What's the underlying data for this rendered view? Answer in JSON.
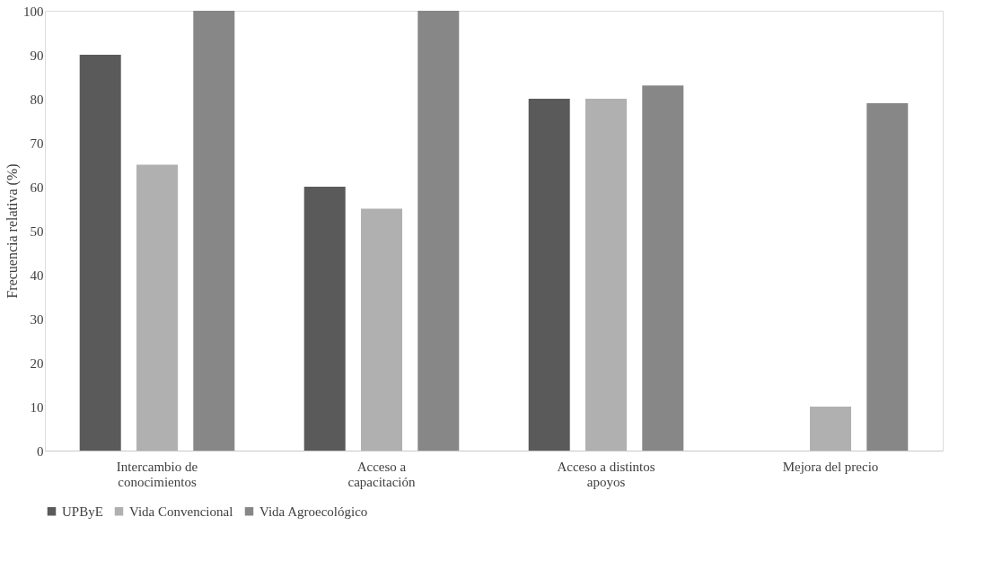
{
  "chart_data": {
    "type": "bar",
    "ylabel": "Frecuencia relativa (%)",
    "categories": [
      "Intercambio de conocimientos",
      "Acceso a capacitación",
      "Acceso a distintos apoyos",
      "Mejora del precio"
    ],
    "series": [
      {
        "name": "UPByE",
        "color": "#5a5a5a",
        "values": [
          90,
          60,
          80,
          0
        ]
      },
      {
        "name": "Vida Convencional",
        "color": "#b0b0b0",
        "values": [
          65,
          55,
          80,
          10
        ]
      },
      {
        "name": "Vida Agroecológico",
        "color": "#878787",
        "values": [
          100,
          100,
          83,
          79
        ]
      }
    ],
    "ylim": [
      0,
      100
    ],
    "yticks": [
      0,
      10,
      20,
      30,
      40,
      50,
      60,
      70,
      80,
      90,
      100
    ],
    "grid": false,
    "legend": "bottom"
  }
}
